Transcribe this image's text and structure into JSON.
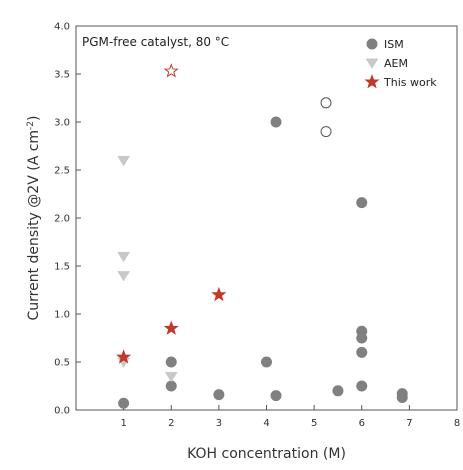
{
  "chart_data": {
    "type": "scatter",
    "title": "",
    "annotation": "PGM-free catalyst, 80 °C",
    "xlabel": "KOH concentration (M)",
    "ylabel_main": "Current density @2V (A cm",
    "ylabel_sup": "-2",
    "ylabel_tail": ")",
    "xlim": [
      0,
      8
    ],
    "ylim": [
      0.0,
      4.0
    ],
    "x_ticks": [
      1,
      2,
      3,
      4,
      5,
      6,
      7,
      8
    ],
    "x_tick_labels": [
      "1",
      "2",
      "3",
      "4",
      "5",
      "6",
      "7",
      "8"
    ],
    "y_ticks": [
      0.0,
      0.5,
      1.0,
      1.5,
      2.0,
      2.5,
      3.0,
      3.5,
      4.0
    ],
    "y_tick_labels": [
      "0.0",
      "0.5",
      "1.0",
      "1.5",
      "2.0",
      "2.5",
      "3.0",
      "3.5",
      "4.0"
    ],
    "grid": false,
    "legend_position": "top-right",
    "series": [
      {
        "name": "ISM",
        "marker": "circle",
        "color": "#808080",
        "points": [
          {
            "x": 1,
            "y": 0.07
          },
          {
            "x": 2,
            "y": 0.5
          },
          {
            "x": 2,
            "y": 0.25
          },
          {
            "x": 3,
            "y": 0.16
          },
          {
            "x": 4,
            "y": 0.5
          },
          {
            "x": 4.2,
            "y": 3.0
          },
          {
            "x": 4.2,
            "y": 0.15
          },
          {
            "x": 5.5,
            "y": 0.2
          },
          {
            "x": 6,
            "y": 2.16
          },
          {
            "x": 6,
            "y": 0.82
          },
          {
            "x": 6,
            "y": 0.75
          },
          {
            "x": 6,
            "y": 0.6
          },
          {
            "x": 6,
            "y": 0.25
          },
          {
            "x": 6.85,
            "y": 0.17
          },
          {
            "x": 6.85,
            "y": 0.13
          }
        ],
        "open_points": [
          {
            "x": 5.25,
            "y": 3.2
          },
          {
            "x": 5.25,
            "y": 2.9
          }
        ]
      },
      {
        "name": "AEM",
        "marker": "triangle-down",
        "color": "#c8c8c8",
        "points": [
          {
            "x": 1,
            "y": 2.6
          },
          {
            "x": 1,
            "y": 1.6
          },
          {
            "x": 1,
            "y": 1.4
          },
          {
            "x": 1,
            "y": 0.5
          },
          {
            "x": 2,
            "y": 0.35
          }
        ]
      },
      {
        "name": "This work",
        "marker": "star",
        "color": "#c0392b",
        "points": [
          {
            "x": 1,
            "y": 0.55
          },
          {
            "x": 2,
            "y": 0.85
          },
          {
            "x": 3,
            "y": 1.2
          }
        ],
        "open_points": [
          {
            "x": 2,
            "y": 3.53
          }
        ]
      }
    ]
  }
}
